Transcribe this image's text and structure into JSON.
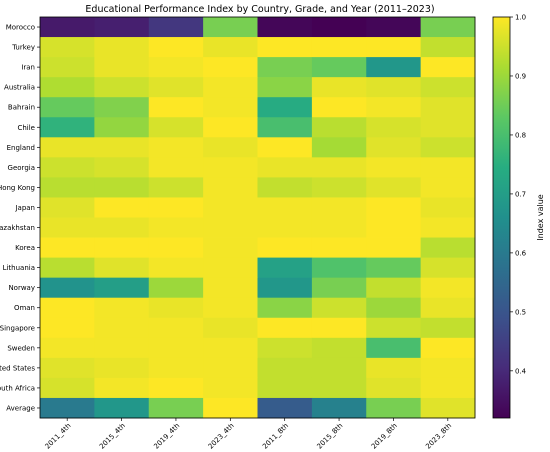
{
  "chart_data": {
    "type": "heatmap",
    "title": "Educational Performance Index by Country, Grade, and Year (2011–2023)",
    "colorbar_label": "Index value",
    "colormap": "viridis",
    "vmin": 0.32,
    "vmax": 1.0,
    "colorbar_ticks": [
      "0.4",
      "0.5",
      "0.6",
      "0.7",
      "0.8",
      "0.9",
      "1.0"
    ],
    "columns": [
      "2011_4th",
      "2015_4th",
      "2019_4th",
      "2023_4th",
      "2011_8th",
      "2015_8th",
      "2019_8th",
      "2023_8th"
    ],
    "rows": [
      "Morocco",
      "Turkey",
      "Iran",
      "Australia",
      "Bahrain",
      "Chile",
      "England",
      "Georgia",
      "Hong Kong",
      "Japan",
      "Kazakhstan",
      "Korea",
      "Lithuania",
      "Norway",
      "Oman",
      "Singapore",
      "Sweden",
      "United States",
      "South Africa",
      "Average"
    ],
    "values": [
      [
        0.37,
        0.38,
        0.43,
        0.86,
        0.33,
        0.32,
        0.33,
        0.86
      ],
      [
        0.96,
        0.98,
        1.0,
        0.98,
        1.0,
        1.0,
        1.0,
        0.94
      ],
      [
        0.95,
        0.98,
        0.99,
        1.0,
        0.86,
        0.84,
        0.68,
        1.0
      ],
      [
        0.92,
        0.95,
        0.97,
        0.99,
        0.88,
        0.98,
        0.97,
        0.95
      ],
      [
        0.84,
        0.87,
        1.0,
        0.99,
        0.74,
        1.0,
        0.99,
        0.97
      ],
      [
        0.76,
        0.89,
        0.96,
        1.0,
        0.8,
        0.93,
        0.96,
        0.97
      ],
      [
        0.98,
        0.98,
        0.99,
        0.98,
        1.0,
        0.91,
        0.97,
        0.95
      ],
      [
        0.95,
        0.96,
        0.99,
        0.99,
        0.98,
        0.98,
        0.99,
        0.99
      ],
      [
        0.93,
        0.93,
        0.95,
        0.99,
        0.94,
        0.95,
        0.97,
        0.99
      ],
      [
        0.97,
        1.0,
        1.0,
        0.99,
        0.99,
        0.99,
        1.0,
        0.98
      ],
      [
        0.98,
        0.98,
        0.99,
        0.99,
        0.99,
        0.99,
        1.0,
        0.99
      ],
      [
        1.0,
        1.0,
        1.0,
        0.99,
        1.0,
        1.0,
        1.0,
        0.93
      ],
      [
        0.93,
        0.97,
        0.99,
        0.99,
        0.71,
        0.81,
        0.84,
        0.96
      ],
      [
        0.67,
        0.7,
        0.9,
        0.99,
        0.68,
        0.86,
        0.94,
        0.99
      ],
      [
        1.0,
        0.99,
        0.98,
        0.99,
        0.88,
        0.95,
        0.9,
        0.98
      ],
      [
        1.0,
        0.99,
        0.99,
        0.98,
        1.0,
        1.0,
        0.95,
        0.94
      ],
      [
        0.99,
        0.99,
        0.99,
        0.99,
        0.95,
        0.94,
        0.8,
        1.0
      ],
      [
        0.97,
        0.98,
        0.99,
        0.99,
        0.94,
        0.94,
        0.98,
        0.99
      ],
      [
        0.96,
        0.99,
        1.0,
        0.99,
        0.94,
        0.94,
        0.97,
        0.99
      ],
      [
        0.6,
        0.68,
        0.86,
        1.0,
        0.52,
        0.62,
        0.86,
        0.97
      ]
    ]
  }
}
